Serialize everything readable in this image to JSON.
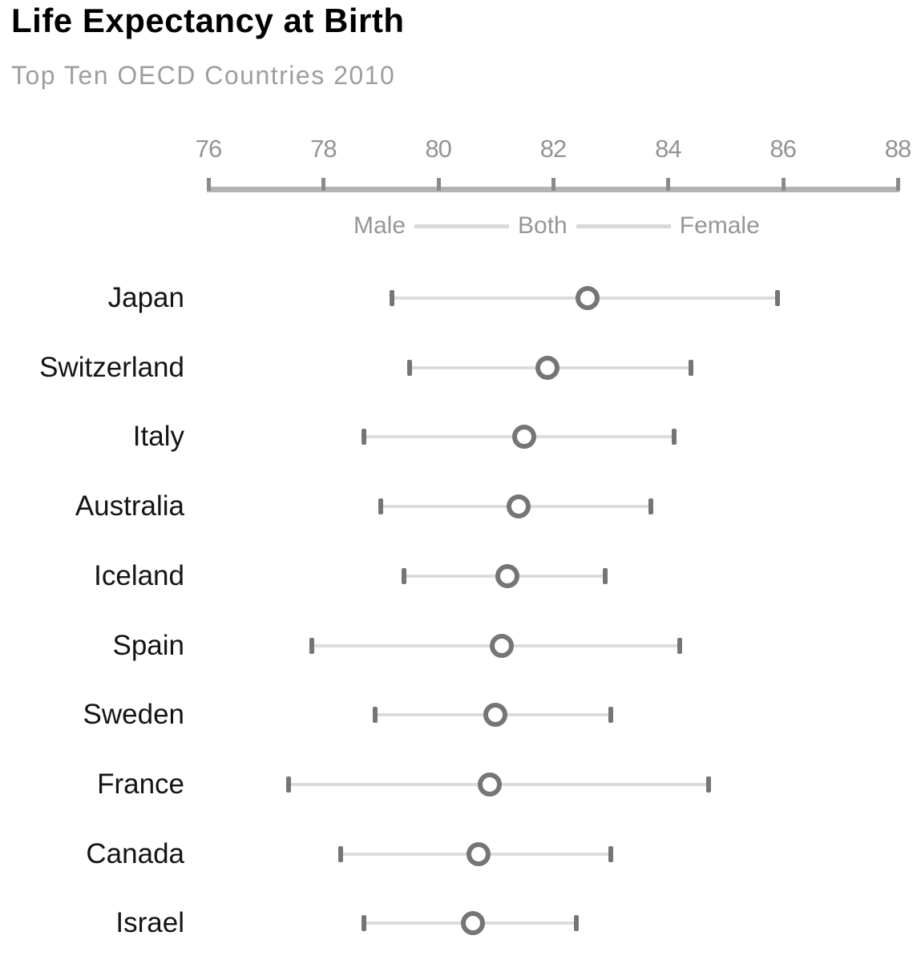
{
  "header": {
    "title": "Life Expectancy at Birth",
    "subtitle": "Top Ten OECD Countries 2010"
  },
  "legend": {
    "items": [
      "Male",
      "Both",
      "Female"
    ]
  },
  "chart_data": {
    "type": "dumbbell",
    "title": "Life Expectancy at Birth",
    "subtitle": "Top Ten OECD Countries 2010",
    "x_axis": {
      "min": 76,
      "max": 88,
      "ticks": [
        76,
        78,
        80,
        82,
        84,
        86,
        88
      ],
      "position": "top"
    },
    "grid": false,
    "legend_position": "top",
    "categories": [
      "Japan",
      "Switzerland",
      "Italy",
      "Australia",
      "Iceland",
      "Spain",
      "Sweden",
      "France",
      "Canada",
      "Israel"
    ],
    "series": [
      {
        "name": "Male",
        "marker": "tick",
        "values": [
          79.2,
          79.5,
          78.7,
          79.0,
          79.4,
          77.8,
          78.9,
          77.4,
          78.3,
          78.7
        ]
      },
      {
        "name": "Both",
        "marker": "open-circle",
        "values": [
          82.6,
          81.9,
          81.5,
          81.4,
          81.2,
          81.1,
          81.0,
          80.9,
          80.7,
          80.6
        ]
      },
      {
        "name": "Female",
        "marker": "tick",
        "values": [
          85.9,
          84.4,
          84.1,
          83.7,
          82.9,
          84.2,
          83.0,
          84.7,
          83.0,
          82.4
        ]
      }
    ]
  },
  "colors": {
    "page_bg": "#ffffff",
    "title": "#000000",
    "subtitle": "#9e9e9e",
    "axis_label": "#949494",
    "axis_tick": "#8a8a8a",
    "axis_line": "#b3b3b3",
    "legend_text": "#969696",
    "legend_line": "#d9d9d9",
    "range_line": "#dcdcdc",
    "marker": "#757575",
    "country_label": "#141414"
  }
}
